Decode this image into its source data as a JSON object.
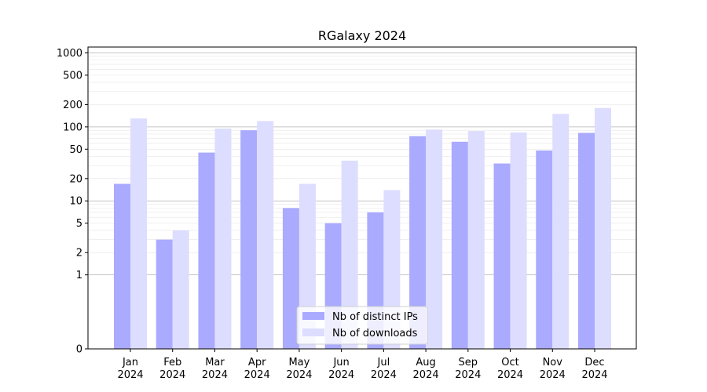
{
  "chart_data": {
    "type": "bar",
    "title": "RGalaxy 2024",
    "xlabel": "",
    "ylabel": "",
    "yscale": "symlog",
    "ylim": [
      0,
      1200
    ],
    "categories": [
      [
        "Jan",
        "2024"
      ],
      [
        "Feb",
        "2024"
      ],
      [
        "Mar",
        "2024"
      ],
      [
        "Apr",
        "2024"
      ],
      [
        "May",
        "2024"
      ],
      [
        "Jun",
        "2024"
      ],
      [
        "Jul",
        "2024"
      ],
      [
        "Aug",
        "2024"
      ],
      [
        "Sep",
        "2024"
      ],
      [
        "Oct",
        "2024"
      ],
      [
        "Nov",
        "2024"
      ],
      [
        "Dec",
        "2024"
      ]
    ],
    "yticks": [
      {
        "value": 0,
        "label": "0"
      },
      {
        "value": 1,
        "label": "1"
      },
      {
        "value": 2,
        "label": "2"
      },
      {
        "value": 5,
        "label": "5"
      },
      {
        "value": 10,
        "label": "10"
      },
      {
        "value": 20,
        "label": "20"
      },
      {
        "value": 50,
        "label": "50"
      },
      {
        "value": 100,
        "label": "100"
      },
      {
        "value": 200,
        "label": "200"
      },
      {
        "value": 500,
        "label": "500"
      },
      {
        "value": 1000,
        "label": "1000"
      }
    ],
    "series": [
      {
        "name": "Nb of distinct IPs",
        "color": "#aaaaff",
        "values": [
          17,
          3,
          45,
          90,
          8,
          5,
          7,
          75,
          63,
          32,
          48,
          83
        ]
      },
      {
        "name": "Nb of downloads",
        "color": "#ddddff",
        "values": [
          130,
          4,
          95,
          120,
          17,
          35,
          14,
          92,
          88,
          84,
          150,
          180
        ]
      }
    ],
    "grid": true,
    "legend_position": "bottom-center"
  }
}
